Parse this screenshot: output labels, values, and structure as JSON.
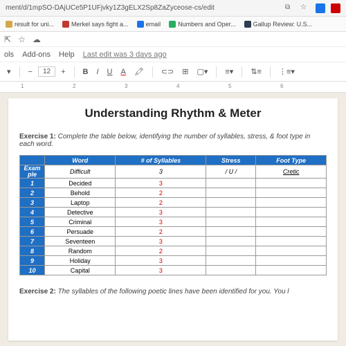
{
  "url": "ment/d/1mpSO-DAjUCe5P1UFjvky1Z3gELX2Sp8ZaZyceose-cs/edit",
  "bookmarks": [
    {
      "label": "result for uni...",
      "color": "#d4a84a"
    },
    {
      "label": "Merkel says fight a...",
      "color": "#c0392b"
    },
    {
      "label": "email",
      "color": "#1a73e8"
    },
    {
      "label": "Numbers and Oper...",
      "color": "#27ae60"
    },
    {
      "label": "Gallup Review: U.S...",
      "color": "#2c3e50"
    }
  ],
  "menu": {
    "items": [
      "ols",
      "Add-ons",
      "Help"
    ],
    "last_edit": "Last edit was 3 days ago"
  },
  "toolbar": {
    "font_size": "12"
  },
  "ruler_ticks": [
    "1",
    "2",
    "3",
    "4",
    "5",
    "6"
  ],
  "doc": {
    "title": "Understanding Rhythm & Meter",
    "ex1_prefix": "Exercise 1:",
    "ex1_text": " Complete the table below, identifying the number of syllables, stress, & foot type in each word.",
    "table": {
      "headers": [
        "",
        "Word",
        "# of Syllables",
        "Stress",
        "Foot Type"
      ],
      "example_label_1": "Exam",
      "example_label_2": "ple",
      "example": {
        "word": "Difficult",
        "syll": "3",
        "stress": "/ U /",
        "foot": "Cretic"
      },
      "rows": [
        {
          "n": "1",
          "word": "Decided",
          "syll": "3"
        },
        {
          "n": "2",
          "word": "Behold",
          "syll": "2"
        },
        {
          "n": "3",
          "word": "Laptop",
          "syll": "2"
        },
        {
          "n": "4",
          "word": "Detective",
          "syll": "3"
        },
        {
          "n": "5",
          "word": "Criminal",
          "syll": "3"
        },
        {
          "n": "6",
          "word": "Persuade",
          "syll": "2"
        },
        {
          "n": "7",
          "word": "Seventeen",
          "syll": "3"
        },
        {
          "n": "8",
          "word": "Random",
          "syll": "2"
        },
        {
          "n": "9",
          "word": "Holiday",
          "syll": "3"
        },
        {
          "n": "10",
          "word": "Capital",
          "syll": "3"
        }
      ]
    },
    "ex2_prefix": "Exercise 2:",
    "ex2_text": " The syllables of the following poetic lines have been identified for you. You l"
  }
}
